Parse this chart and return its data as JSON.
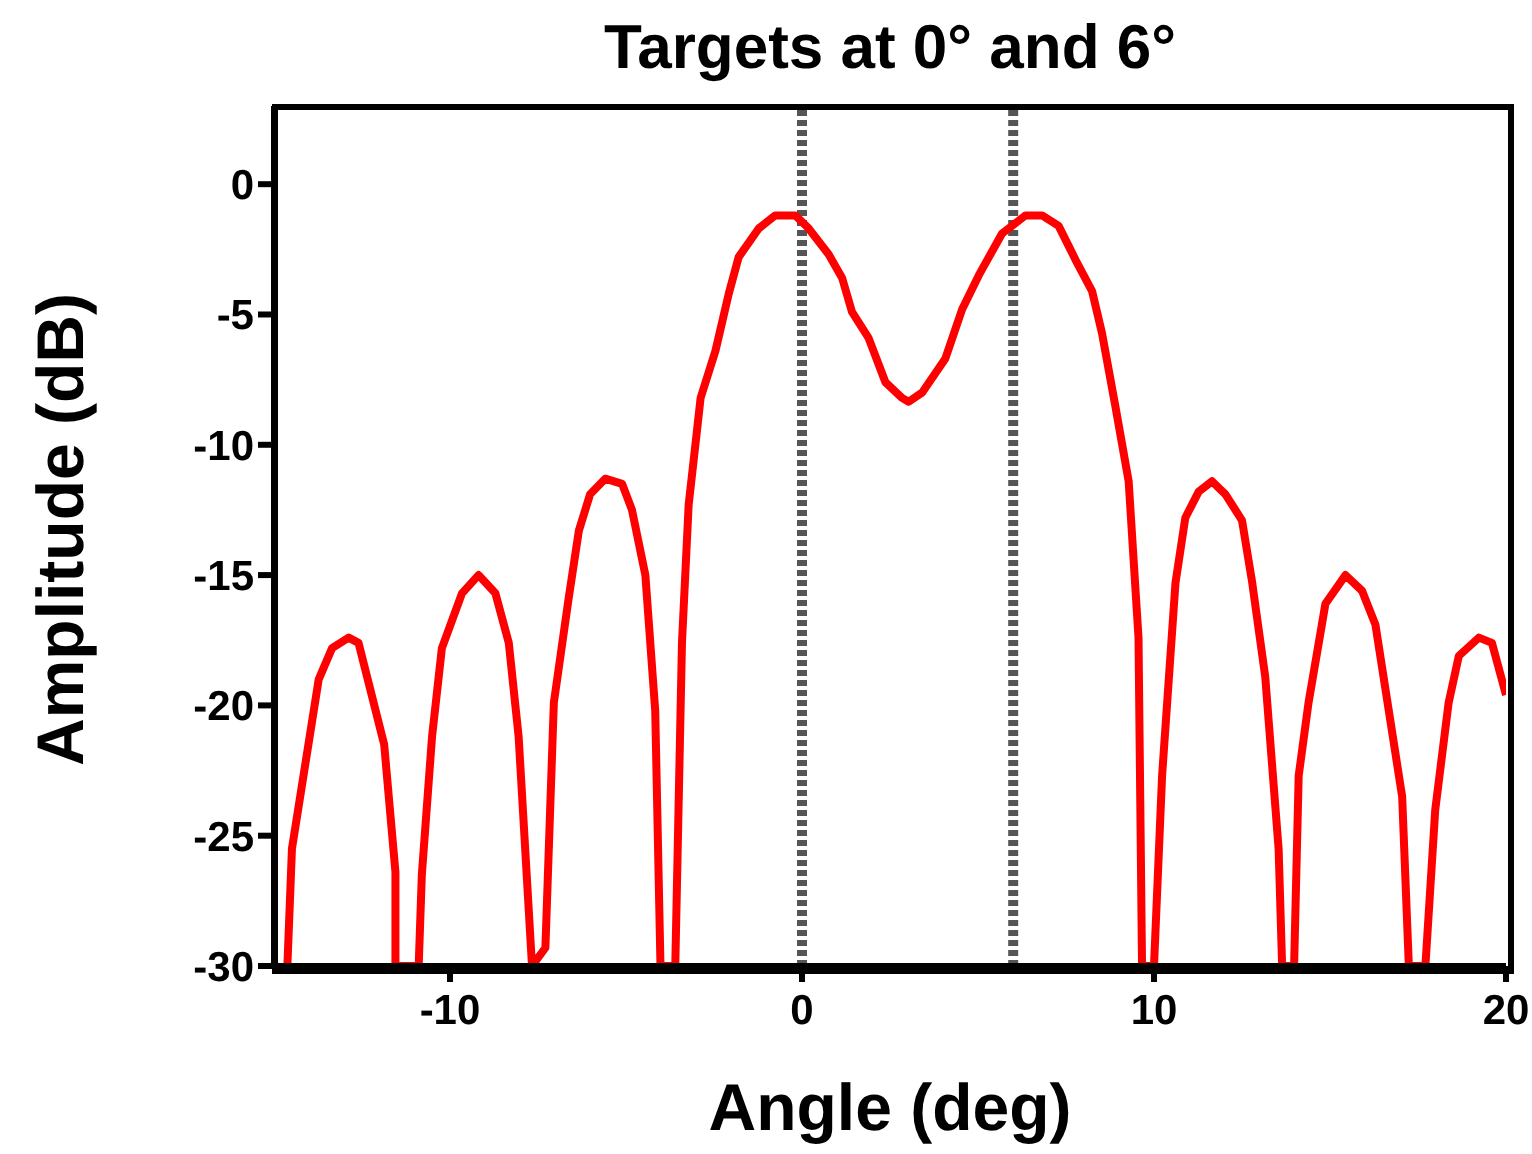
{
  "chart_data": {
    "type": "line",
    "title": "Targets at 0° and 6°",
    "xlabel": "Angle (deg)",
    "ylabel": "Amplitude (dB)",
    "xlim": [
      -15,
      20
    ],
    "xticks": [
      -10,
      0,
      10,
      20
    ],
    "ylim": [
      -30,
      3
    ],
    "yticks": [
      0,
      -5,
      -10,
      -15,
      -20,
      -25,
      -30
    ],
    "ref_lines": [
      {
        "axis": "x",
        "value": 0,
        "color": "#555555",
        "line_style": "dashed"
      },
      {
        "axis": "x",
        "value": 6,
        "color": "#555555",
        "line_style": "dashed"
      }
    ],
    "series": [
      {
        "color": "#ff0000",
        "x": [
          -14.62,
          -14.49,
          -13.73,
          -13.35,
          -12.88,
          -12.6,
          -11.87,
          -11.55,
          -11.55,
          -10.89,
          -10.8,
          -10.51,
          -10.23,
          -9.66,
          -9.19,
          -8.71,
          -8.33,
          -8.05,
          -7.67,
          -7.29,
          -7.05,
          -6.63,
          -6.34,
          -6.02,
          -5.59,
          -5.11,
          -4.83,
          -4.45,
          -4.17,
          -4.02,
          -3.6,
          -3.41,
          -3.22,
          -2.88,
          -2.46,
          -2.08,
          -1.8,
          -1.23,
          -0.76,
          -0.19,
          0.19,
          0.76,
          1.14,
          1.42,
          1.89,
          2.37,
          2.84,
          3.03,
          3.41,
          4.07,
          4.55,
          5.02,
          5.68,
          6.35,
          6.82,
          7.29,
          7.77,
          8.24,
          8.52,
          8.9,
          9.28,
          9.56,
          9.66,
          10.0,
          10.23,
          10.61,
          10.89,
          11.27,
          11.65,
          12.03,
          12.5,
          12.78,
          13.16,
          13.54,
          13.64,
          13.98,
          14.11,
          14.39,
          14.87,
          15.44,
          15.91,
          16.29,
          16.67,
          17.05,
          17.24,
          17.71,
          17.99,
          18.37,
          18.66,
          19.23,
          19.6,
          20.0
        ],
        "values": [
          -30,
          -25.5,
          -19.0,
          -17.8,
          -17.4,
          -17.6,
          -21.5,
          -26.4,
          -30,
          -30,
          -26.5,
          -21.2,
          -17.8,
          -15.7,
          -15.0,
          -15.7,
          -17.6,
          -21.2,
          -30,
          -29.3,
          -19.9,
          -15.9,
          -13.3,
          -11.9,
          -11.3,
          -11.5,
          -12.5,
          -15.0,
          -20.2,
          -30,
          -30,
          -17.6,
          -12.3,
          -8.2,
          -6.4,
          -4.2,
          -2.8,
          -1.7,
          -1.2,
          -1.2,
          -1.7,
          -2.7,
          -3.6,
          -4.9,
          -5.9,
          -7.6,
          -8.2,
          -8.35,
          -8.0,
          -6.7,
          -4.8,
          -3.5,
          -1.9,
          -1.2,
          -1.2,
          -1.6,
          -2.9,
          -4.1,
          -5.7,
          -8.5,
          -11.4,
          -17.4,
          -30,
          -30,
          -22.7,
          -15.3,
          -12.8,
          -11.8,
          -11.4,
          -11.9,
          -12.9,
          -15.2,
          -18.9,
          -25.5,
          -30,
          -30,
          -22.7,
          -19.9,
          -16.1,
          -15.0,
          -15.6,
          -16.9,
          -20.2,
          -23.5,
          -30,
          -30,
          -24.0,
          -19.9,
          -18.1,
          -17.4,
          -17.6,
          -19.6
        ]
      }
    ]
  }
}
